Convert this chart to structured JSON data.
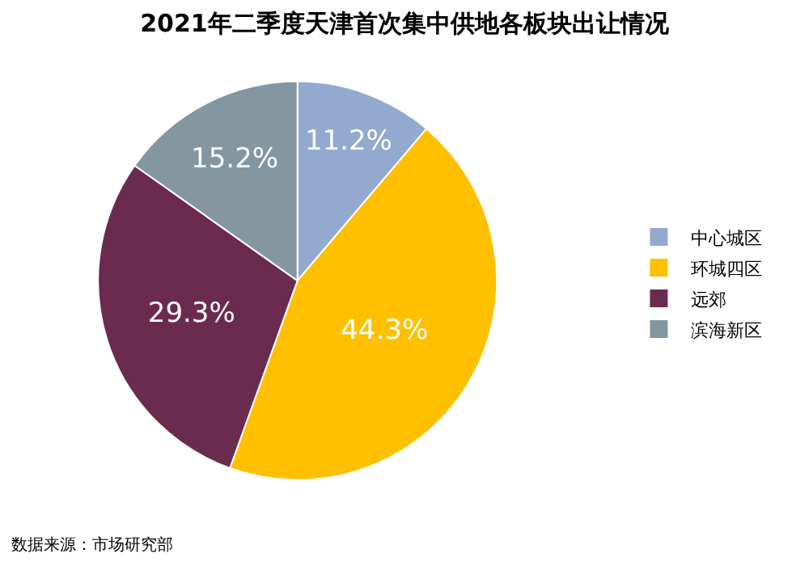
{
  "chart_data": {
    "type": "pie",
    "title": "2021年二季度天津首次集中供地各板块出让情况",
    "categories": [
      "中心城区",
      "环城四区",
      "远郊",
      "滨海新区"
    ],
    "values": [
      11.2,
      44.3,
      29.3,
      15.2
    ],
    "value_labels": [
      "11.2%",
      "44.3%",
      "29.3%",
      "15.2%"
    ],
    "colors": [
      "#94a9cf",
      "#ffc000",
      "#6b2b4f",
      "#8497a0"
    ],
    "legend": "right",
    "annotations": [
      "数据来源：市场研究部"
    ]
  }
}
